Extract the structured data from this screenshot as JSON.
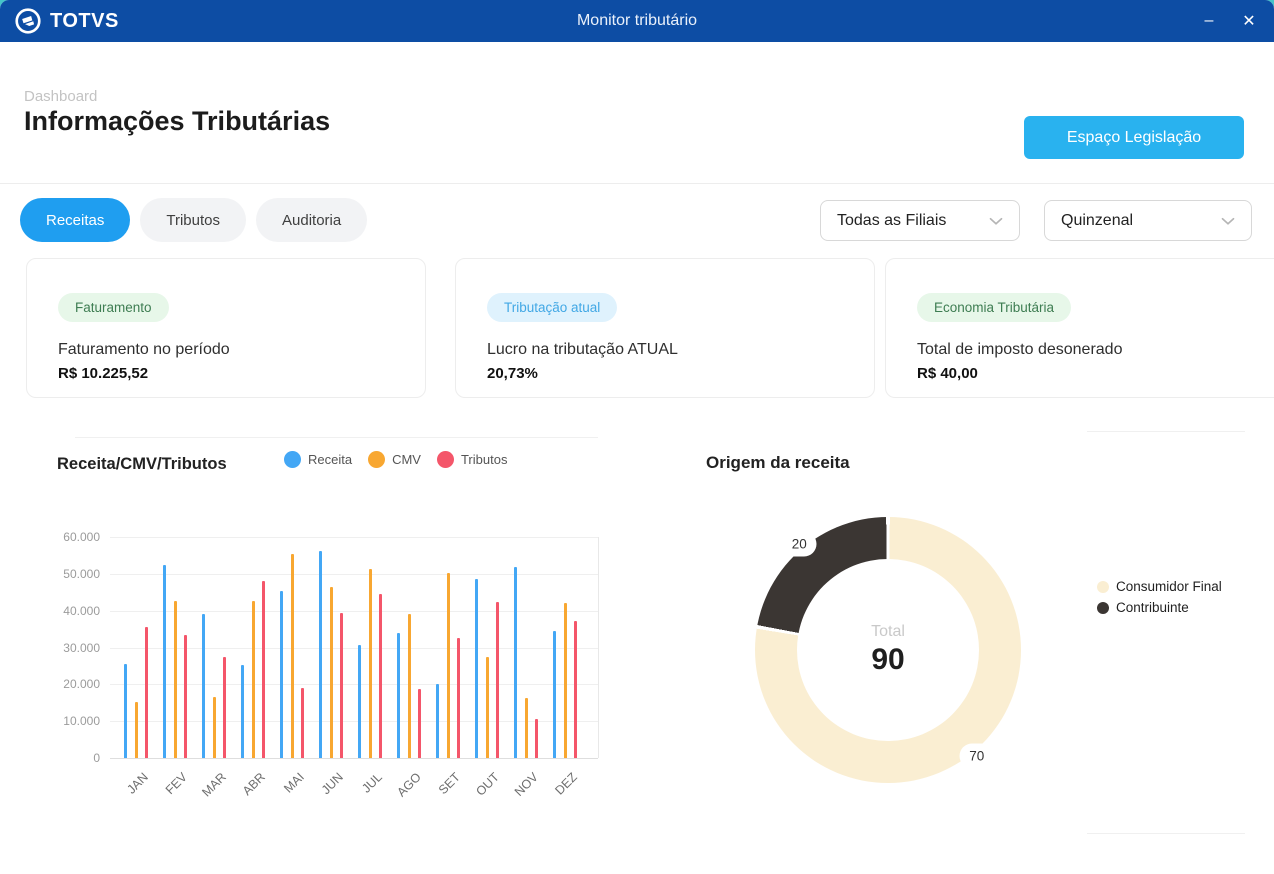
{
  "titlebar": {
    "brand": "TOTVS",
    "title": "Monitor tributário"
  },
  "icons": {
    "minimize": "–",
    "close": "✕"
  },
  "header": {
    "breadcrumb": "Dashboard",
    "title": "Informações Tributárias",
    "action_button": "Espaço Legislação"
  },
  "tabs": [
    {
      "label": "Receitas",
      "active": true
    },
    {
      "label": "Tributos",
      "active": false
    },
    {
      "label": "Auditoria",
      "active": false
    }
  ],
  "filters": {
    "branch": "Todas as Filiais",
    "period": "Quinzenal"
  },
  "cards": [
    {
      "badge": "Faturamento",
      "badge_color": "green",
      "label": "Faturamento no período",
      "value": "R$ 10.225,52"
    },
    {
      "badge": "Tributação atual",
      "badge_color": "blue",
      "label": "Lucro na tributação ATUAL",
      "value": "20,73%"
    },
    {
      "badge": "Economia Tributária",
      "badge_color": "green",
      "label": "Total de imposto desonerado",
      "value": "R$ 40,00"
    }
  ],
  "colors": {
    "titlebar": "#0d4da4",
    "action_button": "#29b2ef",
    "active_tab": "#1f9ef0",
    "badge_green_bg": "#e7f7e9",
    "badge_green_text": "#3e7d52",
    "badge_blue_bg": "#dff2fd",
    "badge_blue_text": "#42a8e5"
  },
  "chart_data": [
    {
      "type": "bar",
      "title": "Receita/CMV/Tributos",
      "categories": [
        "JAN",
        "FEV",
        "MAR",
        "ABR",
        "MAI",
        "JUN",
        "JUL",
        "AGO",
        "SET",
        "OUT",
        "NOV",
        "DEZ"
      ],
      "series": [
        {
          "name": "Receita",
          "color": "#43a7f5",
          "values": [
            25500,
            52500,
            39000,
            25300,
            45300,
            56300,
            30700,
            33900,
            20000,
            48700,
            51800,
            34500
          ]
        },
        {
          "name": "CMV",
          "color": "#f8a731",
          "values": [
            15300,
            42500,
            16500,
            42700,
            55500,
            46300,
            51200,
            39200,
            50300,
            27300,
            16200,
            42100
          ]
        },
        {
          "name": "Tributos",
          "color": "#f4566a",
          "values": [
            35600,
            33500,
            27500,
            48000,
            19000,
            39300,
            44600,
            18600,
            32700,
            42400,
            10500,
            37100
          ]
        }
      ],
      "xlabel": "",
      "ylabel": "",
      "ylim": [
        0,
        60000
      ],
      "yticks": [
        "60.000",
        "50.000",
        "40.000",
        "30.000",
        "20.000",
        "10.000",
        "0"
      ],
      "grid": true,
      "legend_position": "top"
    },
    {
      "type": "pie",
      "title": "Origem da receita",
      "slices": [
        {
          "label": "Consumidor Final",
          "value": 70,
          "color": "#faeed2"
        },
        {
          "label": "Contribuinte",
          "value": 20,
          "color": "#3b3633"
        }
      ],
      "center_label": "Total",
      "center_value": "90",
      "legend_position": "right"
    }
  ]
}
